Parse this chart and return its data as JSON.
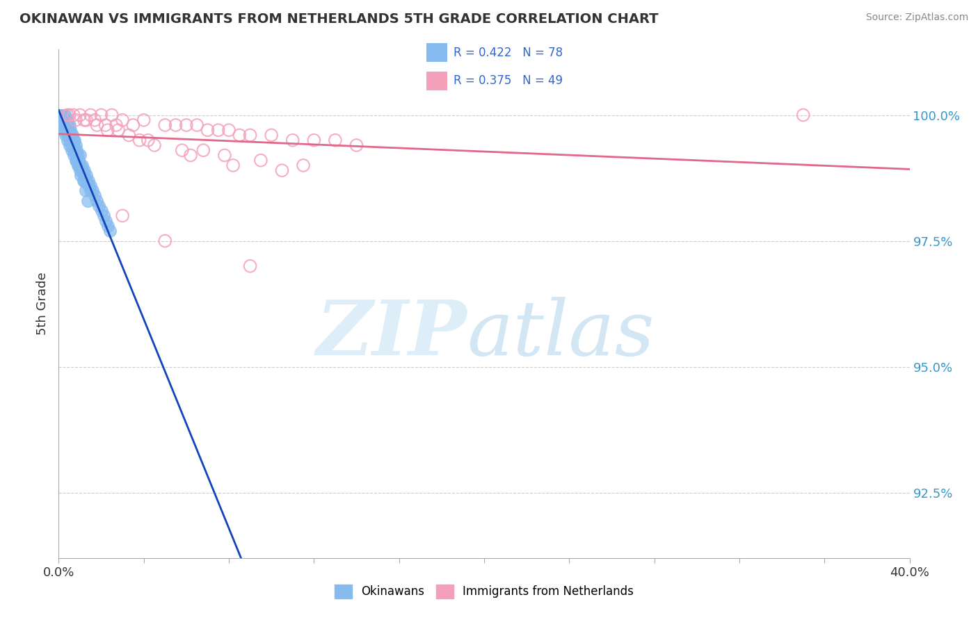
{
  "title": "OKINAWAN VS IMMIGRANTS FROM NETHERLANDS 5TH GRADE CORRELATION CHART",
  "source": "Source: ZipAtlas.com",
  "ylabel": "5th Grade",
  "yticks": [
    92.5,
    95.0,
    97.5,
    100.0
  ],
  "ytick_labels": [
    "92.5%",
    "95.0%",
    "97.5%",
    "100.0%"
  ],
  "xmin": 0.0,
  "xmax": 40.0,
  "ymin": 91.2,
  "ymax": 101.3,
  "blue_R": 0.422,
  "blue_N": 78,
  "pink_R": 0.375,
  "pink_N": 49,
  "blue_color": "#85BBEE",
  "pink_color": "#F4A0BB",
  "blue_line_color": "#1144BB",
  "pink_line_color": "#E06888",
  "legend_R_color": "#3366CC",
  "background_color": "#FFFFFF",
  "title_color": "#333333",
  "grid_color": "#CCCCCC",
  "blue_scatter_x": [
    0.1,
    0.15,
    0.2,
    0.25,
    0.3,
    0.35,
    0.4,
    0.45,
    0.5,
    0.5,
    0.55,
    0.6,
    0.65,
    0.7,
    0.75,
    0.8,
    0.85,
    0.9,
    0.95,
    1.0,
    1.0,
    1.1,
    1.2,
    1.3,
    1.4,
    1.5,
    1.6,
    1.7,
    1.8,
    1.9,
    2.0,
    2.1,
    2.2,
    2.3,
    2.4,
    0.1,
    0.2,
    0.3,
    0.4,
    0.5,
    0.6,
    0.7,
    0.8,
    0.9,
    1.0,
    1.1,
    1.2,
    1.3,
    1.4,
    1.5,
    0.2,
    0.4,
    0.6,
    0.8,
    1.0,
    1.2,
    0.3,
    0.5,
    0.7,
    0.9,
    0.1,
    0.2,
    0.3,
    0.4,
    0.5,
    0.15,
    0.25,
    0.35,
    0.45,
    0.55,
    0.65,
    0.75,
    0.85,
    0.95,
    1.05,
    1.15,
    1.25,
    1.35
  ],
  "blue_scatter_y": [
    100.0,
    100.0,
    100.0,
    100.0,
    100.0,
    99.9,
    99.9,
    99.8,
    99.8,
    99.7,
    99.7,
    99.6,
    99.6,
    99.5,
    99.5,
    99.4,
    99.3,
    99.2,
    99.1,
    99.0,
    99.2,
    99.0,
    98.9,
    98.8,
    98.7,
    98.6,
    98.5,
    98.4,
    98.3,
    98.2,
    98.1,
    98.0,
    97.9,
    97.8,
    97.7,
    99.9,
    99.8,
    99.7,
    99.6,
    99.5,
    99.4,
    99.3,
    99.2,
    99.1,
    99.0,
    98.9,
    98.8,
    98.7,
    98.6,
    98.5,
    99.7,
    99.5,
    99.3,
    99.1,
    98.9,
    98.7,
    99.6,
    99.4,
    99.2,
    99.0,
    100.0,
    99.9,
    99.8,
    99.7,
    99.6,
    100.0,
    99.9,
    99.8,
    99.7,
    99.6,
    99.4,
    99.3,
    99.1,
    99.0,
    98.8,
    98.7,
    98.5,
    98.3
  ],
  "pink_scatter_x": [
    0.5,
    1.0,
    1.5,
    2.0,
    2.5,
    3.0,
    3.5,
    4.0,
    5.0,
    5.5,
    6.0,
    6.5,
    7.0,
    7.5,
    8.0,
    8.5,
    9.0,
    10.0,
    11.0,
    12.0,
    13.0,
    14.0,
    0.8,
    1.3,
    1.8,
    2.3,
    2.8,
    3.3,
    3.8,
    4.5,
    5.8,
    6.8,
    7.8,
    9.5,
    11.5,
    0.4,
    0.7,
    1.2,
    1.7,
    2.2,
    2.7,
    4.2,
    6.2,
    8.2,
    10.5,
    35.0,
    3.0,
    5.0,
    9.0
  ],
  "pink_scatter_y": [
    100.0,
    100.0,
    100.0,
    100.0,
    100.0,
    99.9,
    99.8,
    99.9,
    99.8,
    99.8,
    99.8,
    99.8,
    99.7,
    99.7,
    99.7,
    99.6,
    99.6,
    99.6,
    99.5,
    99.5,
    99.5,
    99.4,
    99.9,
    99.9,
    99.8,
    99.7,
    99.7,
    99.6,
    99.5,
    99.4,
    99.3,
    99.3,
    99.2,
    99.1,
    99.0,
    100.0,
    100.0,
    99.9,
    99.9,
    99.8,
    99.8,
    99.5,
    99.2,
    99.0,
    98.9,
    100.0,
    98.0,
    97.5,
    97.0
  ]
}
